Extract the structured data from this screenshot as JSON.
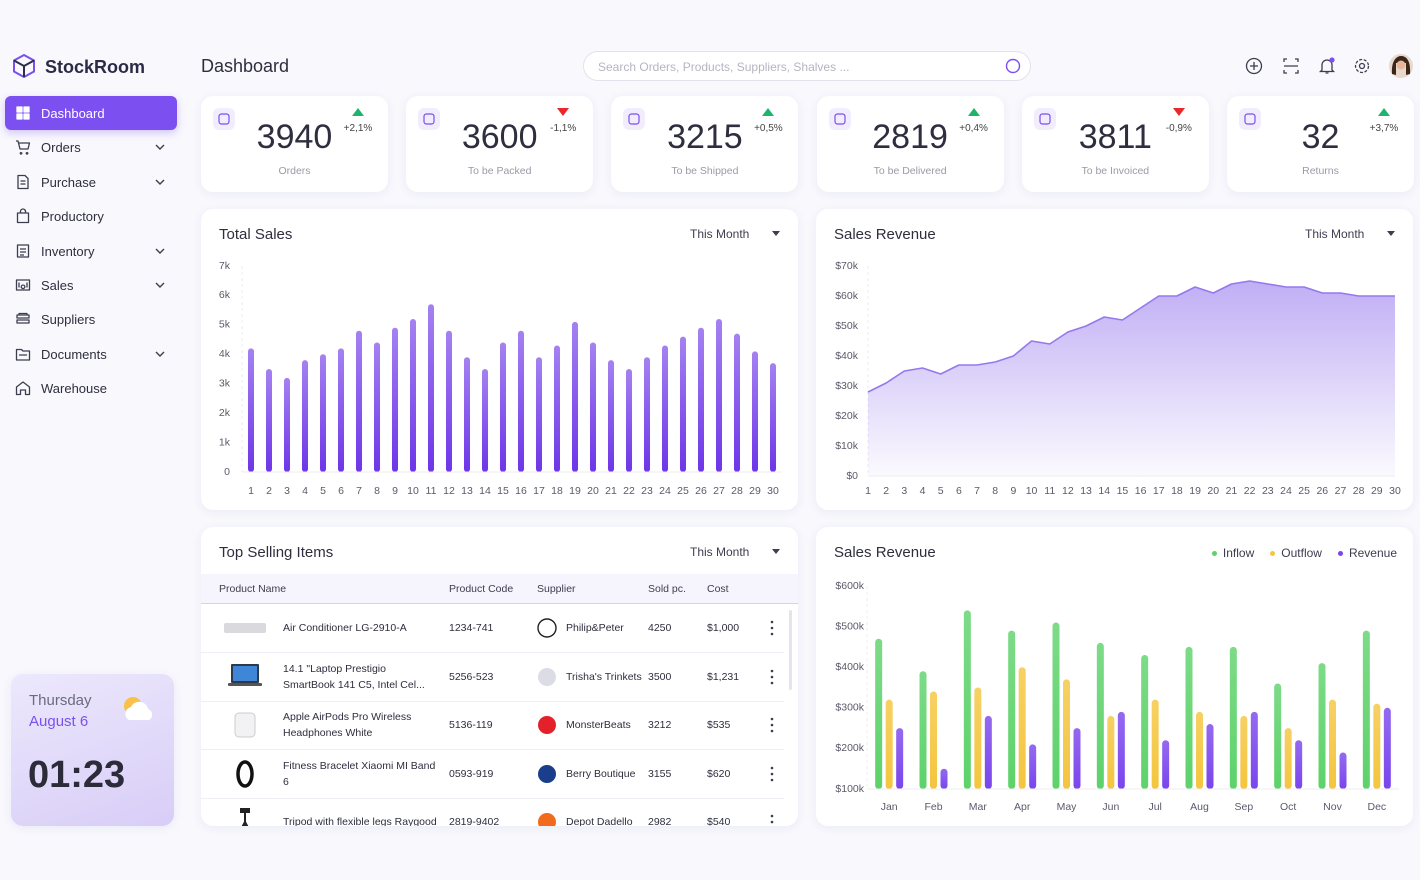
{
  "brand": "StockRoom",
  "page_title": "Dashboard",
  "search_placeholder": "Search Orders, Products, Suppliers, Shalves ...",
  "nav": [
    {
      "label": "Dashboard",
      "expandable": false,
      "active": true
    },
    {
      "label": "Orders",
      "expandable": true
    },
    {
      "label": "Purchase",
      "expandable": true
    },
    {
      "label": "Productory",
      "expandable": false
    },
    {
      "label": "Inventory",
      "expandable": true
    },
    {
      "label": "Sales",
      "expandable": true
    },
    {
      "label": "Suppliers",
      "expandable": false
    },
    {
      "label": "Documents",
      "expandable": true
    },
    {
      "label": "Warehouse",
      "expandable": false
    }
  ],
  "weather": {
    "day": "Thursday",
    "date": "August 6",
    "time": "01:23"
  },
  "stats": [
    {
      "value": 3940,
      "change": "+2,1%",
      "trend": "up",
      "label": "Orders"
    },
    {
      "value": 3600,
      "change": "-1,1%",
      "trend": "down",
      "label": "To be Packed"
    },
    {
      "value": 3215,
      "change": "+0,5%",
      "trend": "up",
      "label": "To be Shipped"
    },
    {
      "value": 2819,
      "change": "+0,4%",
      "trend": "up",
      "label": "To be Delivered"
    },
    {
      "value": 3811,
      "change": "-0,9%",
      "trend": "down",
      "label": "To be Invoiced"
    },
    {
      "value": 32,
      "change": "+3,7%",
      "trend": "up",
      "label": "Returns"
    }
  ],
  "top_selling": {
    "title": "Top Selling Items",
    "period": "This Month",
    "columns": [
      "Product Name",
      "Product Code",
      "Supplier",
      "Sold pc.",
      "Cost"
    ],
    "rows": [
      [
        "Air Conditioner LG-2910-A",
        "1234-741",
        "Philip&Peter",
        4250,
        "$1,000"
      ],
      [
        "14.1 \"Laptop Prestigio SmartBook 141 C5, Intel Cel...",
        "5256-523",
        "Trisha's Trinkets",
        3500,
        "$1,231"
      ],
      [
        "Apple AirPods Pro Wireless Headphones White",
        "5136-119",
        "MonsterBeats",
        3212,
        "$535"
      ],
      [
        "Fitness Bracelet Xiaomi MI Band 6",
        "0593-919",
        "Berry Boutique",
        3155,
        "$620"
      ],
      [
        "Tripod with flexible legs Raygood",
        "2819-9402",
        "Depot Dadello",
        2982,
        "$540"
      ]
    ]
  },
  "chart_data": [
    {
      "type": "bar",
      "title": "Total Sales",
      "period": "This Month",
      "color": "#6d35e8",
      "categories": [
        1,
        2,
        3,
        4,
        5,
        6,
        7,
        8,
        9,
        10,
        11,
        12,
        13,
        14,
        15,
        16,
        17,
        18,
        19,
        20,
        21,
        22,
        23,
        24,
        25,
        26,
        27,
        28,
        29,
        30
      ],
      "values": [
        4200,
        3500,
        3200,
        3800,
        4000,
        4200,
        4800,
        4400,
        4900,
        5200,
        5700,
        4800,
        3900,
        3500,
        4400,
        4800,
        3900,
        4300,
        5100,
        4400,
        3800,
        3500,
        3900,
        4300,
        4600,
        4900,
        5200,
        4700,
        4100,
        3700
      ],
      "ylim": [
        0,
        7000
      ],
      "yticks": [
        0,
        {
          "value": 1000,
          "label": "1k"
        },
        {
          "value": 2000,
          "label": "2k"
        },
        {
          "value": 3000,
          "label": "3k"
        },
        {
          "value": 4000,
          "label": "4k"
        },
        {
          "value": 5000,
          "label": "5k"
        },
        {
          "value": 6000,
          "label": "6k"
        },
        {
          "value": 7000,
          "label": "7k"
        }
      ]
    },
    {
      "type": "area",
      "title": "Sales Revenue",
      "period": "This Month",
      "color": "#9678ee",
      "x": [
        1,
        2,
        3,
        4,
        5,
        6,
        7,
        8,
        9,
        10,
        11,
        12,
        13,
        14,
        15,
        16,
        17,
        18,
        19,
        20,
        21,
        22,
        23,
        24,
        25,
        26,
        27,
        28,
        29,
        30
      ],
      "values": [
        28000,
        31000,
        35000,
        36000,
        34000,
        37000,
        37000,
        38000,
        40000,
        45000,
        44000,
        48000,
        50000,
        53000,
        52000,
        56000,
        60000,
        60000,
        63000,
        61000,
        64000,
        65000,
        64000,
        63000,
        63000,
        61000,
        61000,
        60000,
        60000,
        60000
      ],
      "xlim": [
        1,
        30
      ],
      "xticks": [
        1,
        2,
        3,
        4,
        5,
        6,
        7,
        8,
        9,
        10,
        11,
        12,
        13,
        14,
        15,
        16,
        17,
        18,
        19,
        20,
        21,
        22,
        23,
        24,
        25,
        26,
        27,
        28,
        29,
        30
      ],
      "ylim": [
        0,
        70000
      ],
      "yticks": [
        {
          "value": 0,
          "label": "$0"
        },
        {
          "value": 10000,
          "label": "$10k"
        },
        {
          "value": 20000,
          "label": "$20k"
        },
        {
          "value": 30000,
          "label": "$30k"
        },
        {
          "value": 40000,
          "label": "$40k"
        },
        {
          "value": 50000,
          "label": "$50k"
        },
        {
          "value": 60000,
          "label": "$60k"
        },
        {
          "value": 70000,
          "label": "$70k"
        }
      ]
    },
    {
      "type": "bar",
      "title": "Sales Revenue",
      "legend": "top-right",
      "categories": [
        "Jan",
        "Feb",
        "Mar",
        "Apr",
        "May",
        "Jun",
        "Jul",
        "Aug",
        "Sep",
        "Oct",
        "Nov",
        "Dec"
      ],
      "series": [
        {
          "name": "Inflow",
          "color": "#5dd26a",
          "values": [
            470000,
            390000,
            540000,
            490000,
            510000,
            460000,
            430000,
            450000,
            450000,
            360000,
            410000,
            490000
          ]
        },
        {
          "name": "Outflow",
          "color": "#f4c53e",
          "values": [
            320000,
            340000,
            350000,
            400000,
            370000,
            280000,
            320000,
            290000,
            280000,
            250000,
            320000,
            310000
          ]
        },
        {
          "name": "Revenue",
          "color": "#7a45ec",
          "values": [
            250000,
            150000,
            280000,
            210000,
            250000,
            290000,
            220000,
            260000,
            290000,
            220000,
            190000,
            300000
          ]
        }
      ],
      "ylim": [
        100000,
        600000
      ],
      "yticks": [
        {
          "value": 100000,
          "label": "$100k"
        },
        {
          "value": 200000,
          "label": "$200k"
        },
        {
          "value": 300000,
          "label": "$300k"
        },
        {
          "value": 400000,
          "label": "$400k"
        },
        {
          "value": 500000,
          "label": "$500k"
        },
        {
          "value": 600000,
          "label": "$600k"
        }
      ]
    }
  ]
}
